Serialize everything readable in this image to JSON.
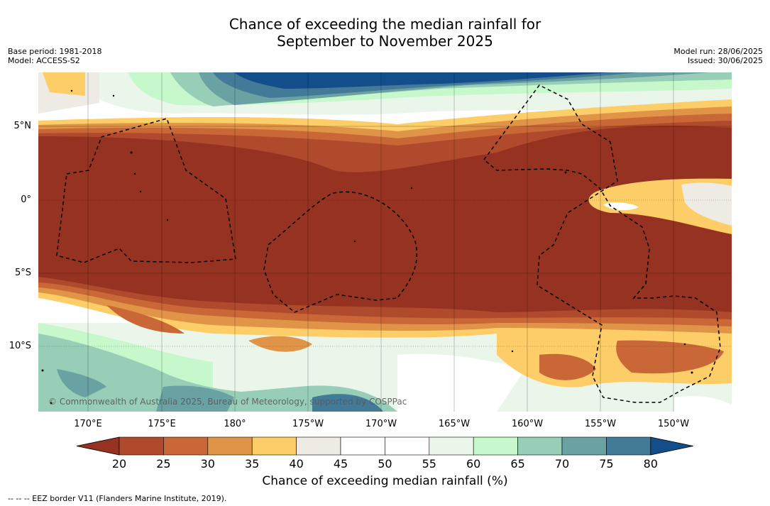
{
  "title": {
    "line1": "Chance of exceeding the median rainfall for",
    "line2": "September to November 2025"
  },
  "meta_left": {
    "base_period": "Base period: 1981-2018",
    "model": "Model: ACCESS-S2"
  },
  "meta_right": {
    "model_run": "Model run: 28/06/2025",
    "issued": "Issued: 30/06/2025"
  },
  "map": {
    "lat_labels": [
      "5°N",
      "0°",
      "5°S",
      "10°S"
    ],
    "lon_labels": [
      "170°E",
      "175°E",
      "180°",
      "175°W",
      "170°W",
      "165°W",
      "160°W",
      "155°W",
      "150°W"
    ],
    "copyright": "© Commonwealth of Australia 2025, Bureau of Meteorology, supported by COSPPac"
  },
  "colorbar": {
    "ticks": [
      "20",
      "25",
      "30",
      "35",
      "40",
      "45",
      "50",
      "55",
      "60",
      "65",
      "70",
      "75",
      "80"
    ],
    "colors": [
      "#963222",
      "#b04a2c",
      "#c96737",
      "#df9448",
      "#fdcd68",
      "#eeebe4",
      "#ffffff",
      "#ffffff",
      "#ebf6eb",
      "#c6f8cb",
      "#98cdb7",
      "#6aa1a2",
      "#437a98",
      "#134e8b"
    ],
    "title": "Chance of exceeding median rainfall (%)"
  },
  "footer": "--  --  -- EEZ border V11 (Flanders Marine Institute, 2019)."
}
